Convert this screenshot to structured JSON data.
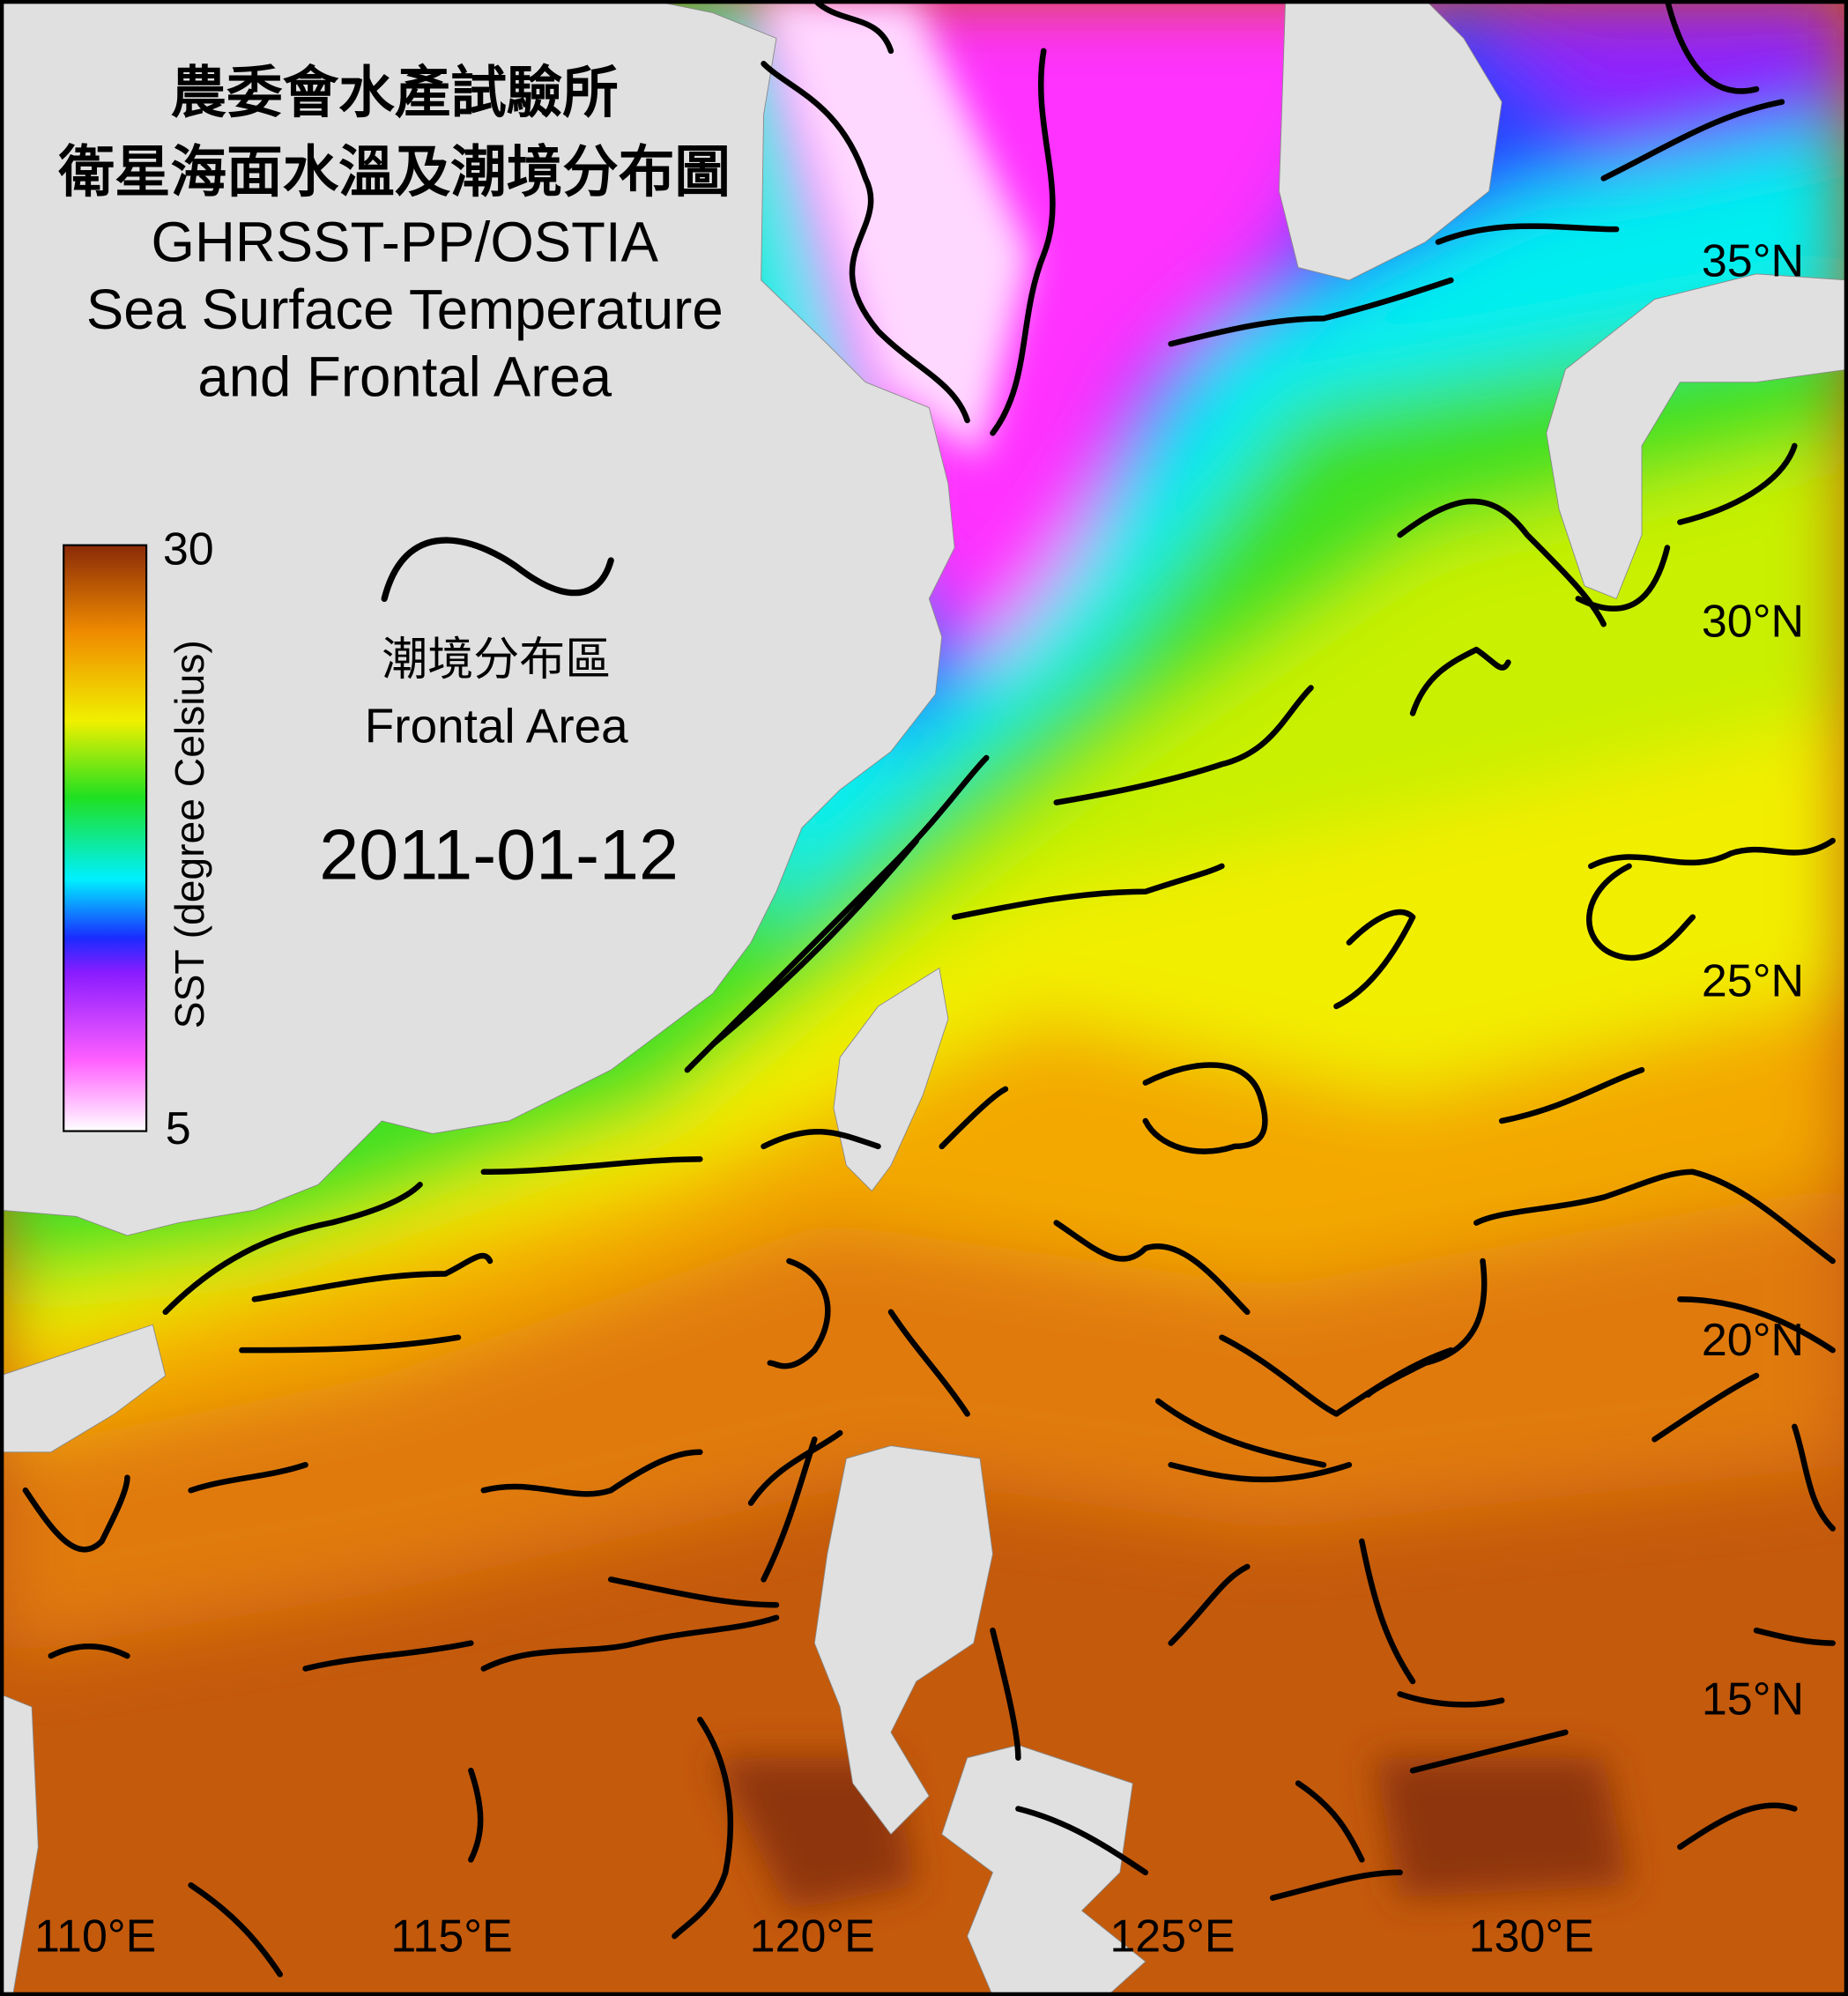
{
  "title": {
    "line1": "農委會水產試驗所",
    "line2": "衛星海面水溫及潮境分布圖",
    "line3": "GHRSST-PP/OSTIA",
    "line4": "Sea Surface Temperature",
    "line5": "and Frontal Area"
  },
  "colorbar": {
    "max_label": "30",
    "min_label": "5",
    "axis_label": "SST (degree Celsius)",
    "range": [
      5,
      30
    ],
    "colors": [
      "#ffffff",
      "#ff60ff",
      "#8a1cff",
      "#1a2cff",
      "#00f0ff",
      "#20e020",
      "#f0f000",
      "#f08c00",
      "#8a2a08"
    ]
  },
  "legend": {
    "icon": "front-line-icon",
    "label_zh": "潮境分布區",
    "label_en": "Frontal Area"
  },
  "date": "2011-01-12",
  "lat_labels": [
    "35°N",
    "30°N",
    "25°N",
    "20°N",
    "15°N"
  ],
  "lon_labels": [
    "110°E",
    "115°E",
    "120°E",
    "125°E",
    "130°E"
  ],
  "colors": {
    "land": "#e0e0e0",
    "front": "#000000",
    "border": "#000000"
  }
}
